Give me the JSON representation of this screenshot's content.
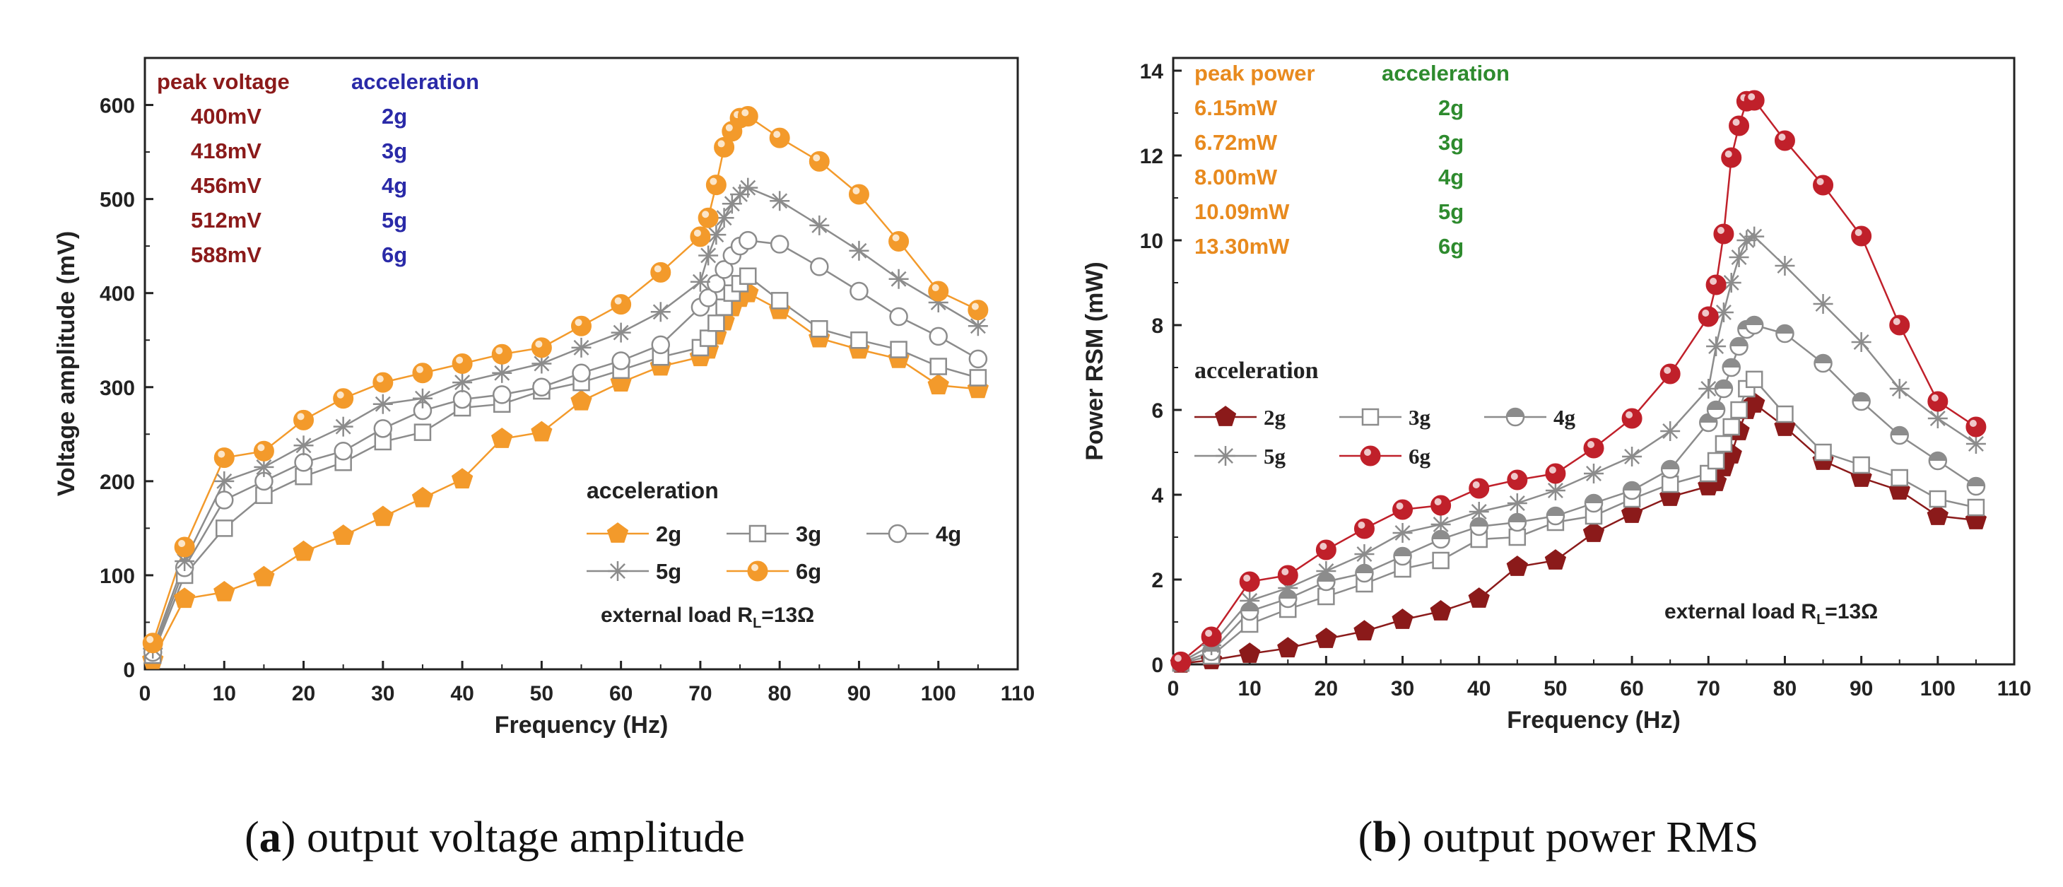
{
  "colors": {
    "orange": "#f39a2b",
    "orange_text": "#e88a1e",
    "darkred": "#8b1a1a",
    "red": "#c0202a",
    "blue": "#2a2aa8",
    "green": "#2e8b2e",
    "gray": "#8c8c8c",
    "axis": "#222222"
  },
  "captions": {
    "a": {
      "letter": "a",
      "text": " output voltage amplitude"
    },
    "b": {
      "letter": "b",
      "text": " output power RMS"
    }
  },
  "chart_data": [
    {
      "id": "a",
      "type": "line",
      "title": "",
      "xlabel": "Frequency (Hz)",
      "ylabel": "Voltage amplitude (mV)",
      "xlim": [
        0,
        110
      ],
      "ylim": [
        0,
        650
      ],
      "xticks": [
        0,
        10,
        20,
        30,
        40,
        50,
        60,
        70,
        80,
        90,
        100,
        110
      ],
      "xtick_labels": [
        "0",
        "10",
        "20",
        "30",
        "40",
        "50",
        "60",
        "70",
        "80",
        "90",
        "100",
        "110"
      ],
      "yticks": [
        0,
        100,
        200,
        300,
        400,
        500,
        600
      ],
      "ytick_labels": [
        "0",
        "100",
        "200",
        "300",
        "400",
        "500",
        "600"
      ],
      "x": [
        1,
        5,
        10,
        15,
        20,
        25,
        30,
        35,
        40,
        45,
        50,
        55,
        60,
        65,
        70,
        71,
        72,
        73,
        74,
        75,
        76,
        80,
        85,
        90,
        95,
        100,
        105
      ],
      "series": [
        {
          "name": "2g",
          "marker": "pentagon",
          "color": "#f39a2b",
          "fill": "#f39a2b",
          "values": [
            10,
            75,
            82,
            98,
            125,
            142,
            162,
            182,
            202,
            245,
            252,
            285,
            305,
            322,
            332,
            340,
            355,
            370,
            385,
            395,
            400,
            382,
            352,
            340,
            330,
            302,
            298
          ]
        },
        {
          "name": "3g",
          "marker": "square",
          "color": "#8c8c8c",
          "fill": "#ffffff",
          "values": [
            15,
            100,
            150,
            185,
            205,
            220,
            242,
            252,
            278,
            282,
            296,
            305,
            318,
            332,
            342,
            352,
            368,
            385,
            400,
            410,
            418,
            392,
            362,
            350,
            340,
            322,
            310
          ]
        },
        {
          "name": "4g",
          "marker": "circle",
          "color": "#8c8c8c",
          "fill": "#ffffff",
          "values": [
            18,
            108,
            180,
            200,
            220,
            232,
            256,
            275,
            287,
            292,
            300,
            315,
            328,
            345,
            385,
            395,
            410,
            425,
            440,
            450,
            456,
            452,
            428,
            402,
            375,
            354,
            330
          ]
        },
        {
          "name": "5g",
          "marker": "star",
          "color": "#8c8c8c",
          "fill": "none",
          "values": [
            22,
            115,
            200,
            215,
            238,
            258,
            282,
            288,
            305,
            315,
            325,
            342,
            358,
            380,
            412,
            440,
            462,
            480,
            495,
            505,
            512,
            498,
            472,
            445,
            415,
            390,
            365
          ]
        },
        {
          "name": "6g",
          "marker": "ballcircle",
          "color": "#f39a2b",
          "fill": "#f39a2b",
          "values": [
            28,
            130,
            225,
            232,
            265,
            288,
            305,
            315,
            325,
            335,
            342,
            365,
            388,
            422,
            460,
            480,
            515,
            555,
            572,
            586,
            588,
            565,
            540,
            505,
            455,
            402,
            382
          ]
        }
      ],
      "legend": {
        "title": "acceleration",
        "position": "lower-right",
        "entries": [
          "2g",
          "3g",
          "4g",
          "5g",
          "6g"
        ]
      },
      "annotation": {
        "prefix": "external load R",
        "sub": "L",
        "suffix": "=13Ω"
      },
      "peak_table": {
        "header_left": "peak voltage",
        "header_right": "acceleration",
        "left_color": "#8b1a1a",
        "right_color": "#2a2aa8",
        "rows": [
          {
            "value": "400mV",
            "accel": "2g"
          },
          {
            "value": "418mV",
            "accel": "3g"
          },
          {
            "value": "456mV",
            "accel": "4g"
          },
          {
            "value": "512mV",
            "accel": "5g"
          },
          {
            "value": "588mV",
            "accel": "6g"
          }
        ]
      }
    },
    {
      "id": "b",
      "type": "line",
      "title": "",
      "xlabel": "Frequency (Hz)",
      "ylabel": "Power RSM (mW)",
      "xlim": [
        0,
        110
      ],
      "ylim": [
        0,
        14.3
      ],
      "xticks": [
        0,
        10,
        20,
        30,
        40,
        50,
        60,
        70,
        80,
        90,
        100,
        110
      ],
      "xtick_labels": [
        "0",
        "10",
        "20",
        "30",
        "40",
        "50",
        "60",
        "70",
        "80",
        "90",
        "100",
        "110"
      ],
      "yticks": [
        0,
        2,
        4,
        6,
        8,
        10,
        12,
        14
      ],
      "ytick_labels": [
        "0",
        "2",
        "4",
        "6",
        "8",
        "10",
        "12",
        "14"
      ],
      "x": [
        1,
        5,
        10,
        15,
        20,
        25,
        30,
        35,
        40,
        45,
        50,
        55,
        60,
        65,
        70,
        71,
        72,
        73,
        74,
        75,
        76,
        80,
        85,
        90,
        95,
        100,
        105
      ],
      "series": [
        {
          "name": "2g",
          "marker": "pentagon",
          "color": "#8b1a1a",
          "fill": "#8b1a1a",
          "values": [
            0.02,
            0.1,
            0.25,
            0.38,
            0.6,
            0.78,
            1.05,
            1.25,
            1.55,
            2.3,
            2.45,
            3.1,
            3.55,
            3.95,
            4.2,
            4.3,
            4.65,
            4.95,
            5.5,
            6.0,
            6.15,
            5.6,
            4.8,
            4.4,
            4.1,
            3.5,
            3.4
          ]
        },
        {
          "name": "3g",
          "marker": "square",
          "color": "#8c8c8c",
          "fill": "#ffffff",
          "values": [
            0.03,
            0.2,
            0.95,
            1.3,
            1.6,
            1.9,
            2.25,
            2.45,
            2.95,
            3.0,
            3.35,
            3.5,
            3.9,
            4.25,
            4.5,
            4.8,
            5.2,
            5.6,
            6.0,
            6.5,
            6.72,
            5.9,
            5.0,
            4.7,
            4.4,
            3.9,
            3.7
          ]
        },
        {
          "name": "4g",
          "marker": "halfcircle",
          "color": "#8c8c8c",
          "fill": "#ffffff",
          "values": [
            0.04,
            0.3,
            1.25,
            1.55,
            1.95,
            2.15,
            2.55,
            2.95,
            3.25,
            3.35,
            3.5,
            3.8,
            4.1,
            4.6,
            5.7,
            6.0,
            6.5,
            7.0,
            7.5,
            7.9,
            8.0,
            7.8,
            7.1,
            6.2,
            5.4,
            4.8,
            4.2
          ]
        },
        {
          "name": "5g",
          "marker": "star",
          "color": "#8c8c8c",
          "fill": "none",
          "values": [
            0.05,
            0.45,
            1.5,
            1.8,
            2.2,
            2.6,
            3.1,
            3.3,
            3.6,
            3.8,
            4.1,
            4.5,
            4.9,
            5.5,
            6.5,
            7.5,
            8.3,
            9.0,
            9.6,
            10.0,
            10.09,
            9.4,
            8.5,
            7.6,
            6.5,
            5.8,
            5.2
          ]
        },
        {
          "name": "6g",
          "marker": "ballcircle",
          "color": "#c0202a",
          "fill": "#c0202a",
          "values": [
            0.06,
            0.65,
            1.95,
            2.1,
            2.7,
            3.2,
            3.65,
            3.75,
            4.15,
            4.35,
            4.5,
            5.1,
            5.8,
            6.85,
            8.2,
            8.95,
            10.15,
            11.95,
            12.7,
            13.28,
            13.3,
            12.35,
            11.3,
            10.1,
            8.0,
            6.2,
            5.6
          ]
        }
      ],
      "legend": {
        "title": "acceleration",
        "position": "center-left",
        "entries": [
          "2g",
          "3g",
          "4g",
          "5g",
          "6g"
        ]
      },
      "annotation": {
        "prefix": "external load R",
        "sub": "L",
        "suffix": "=13Ω"
      },
      "peak_table": {
        "header_left": "peak power",
        "header_right": "acceleration",
        "left_color": "#e88a1e",
        "right_color": "#2e8b2e",
        "rows": [
          {
            "value": "6.15mW",
            "accel": "2g"
          },
          {
            "value": "6.72mW",
            "accel": "3g"
          },
          {
            "value": "8.00mW",
            "accel": "4g"
          },
          {
            "value": "10.09mW",
            "accel": "5g"
          },
          {
            "value": "13.30mW",
            "accel": "6g"
          }
        ]
      }
    }
  ]
}
